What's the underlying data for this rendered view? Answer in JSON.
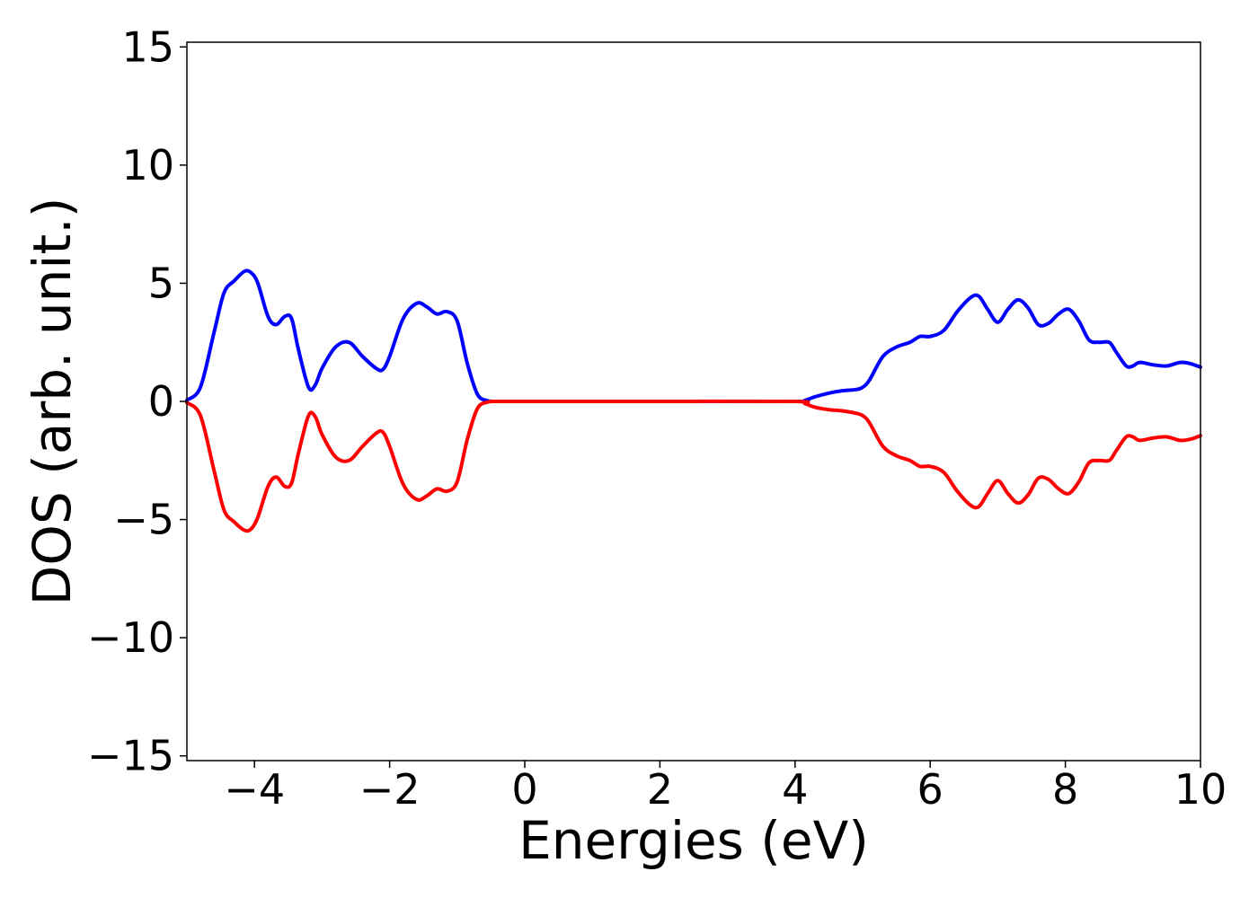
{
  "chart_data": {
    "type": "line",
    "title": "",
    "xlabel": "Energies (eV)",
    "ylabel": "DOS (arb. unit.)",
    "xlim": [
      -5,
      10
    ],
    "ylim": [
      -15.2,
      15.2
    ],
    "xticks": [
      -4,
      -2,
      0,
      2,
      4,
      6,
      8,
      10
    ],
    "xtick_labels": [
      "−4",
      "−2",
      "0",
      "2",
      "4",
      "6",
      "8",
      "10"
    ],
    "yticks": [
      15,
      10,
      5,
      0,
      -5,
      -10,
      -15
    ],
    "ytick_labels": [
      "15",
      "10",
      "5",
      "0",
      "−5",
      "−10",
      "−15"
    ],
    "grid": false,
    "legend": "none",
    "series": [
      {
        "color": "#0000ff",
        "x": [
          -5.0,
          -4.8,
          -4.6,
          -4.45,
          -4.3,
          -4.15,
          -4.05,
          -3.95,
          -3.8,
          -3.68,
          -3.55,
          -3.45,
          -3.35,
          -3.2,
          -3.1,
          -3.0,
          -2.8,
          -2.6,
          -2.4,
          -2.2,
          -2.1,
          -2.0,
          -1.8,
          -1.6,
          -1.45,
          -1.3,
          -1.15,
          -1.0,
          -0.85,
          -0.7,
          -0.55,
          -0.4,
          0.0,
          2.0,
          4.0,
          4.15,
          4.3,
          4.5,
          4.7,
          4.9,
          5.0,
          5.1,
          5.3,
          5.5,
          5.7,
          5.85,
          6.0,
          6.2,
          6.4,
          6.6,
          6.72,
          6.85,
          7.0,
          7.15,
          7.3,
          7.45,
          7.6,
          7.75,
          7.9,
          8.05,
          8.2,
          8.35,
          8.5,
          8.65,
          8.75,
          8.9,
          9.0,
          9.1,
          9.3,
          9.5,
          9.7,
          9.85,
          10.0
        ],
        "y": [
          0.05,
          0.6,
          2.9,
          4.6,
          5.1,
          5.5,
          5.45,
          5.0,
          3.6,
          3.25,
          3.6,
          3.5,
          2.2,
          0.6,
          0.7,
          1.4,
          2.3,
          2.5,
          1.9,
          1.4,
          1.35,
          1.9,
          3.5,
          4.15,
          4.0,
          3.7,
          3.8,
          3.4,
          1.6,
          0.3,
          0.03,
          0.0,
          0.0,
          0.0,
          0.0,
          0.05,
          0.2,
          0.35,
          0.45,
          0.5,
          0.6,
          0.9,
          1.9,
          2.3,
          2.5,
          2.75,
          2.75,
          3.0,
          3.8,
          4.4,
          4.45,
          3.9,
          3.35,
          3.9,
          4.3,
          3.95,
          3.25,
          3.3,
          3.7,
          3.9,
          3.4,
          2.6,
          2.5,
          2.5,
          2.1,
          1.5,
          1.5,
          1.65,
          1.55,
          1.5,
          1.65,
          1.6,
          1.45
        ]
      },
      {
        "color": "#ff0000",
        "x": [
          -5.0,
          -4.8,
          -4.6,
          -4.45,
          -4.3,
          -4.15,
          -4.05,
          -3.95,
          -3.8,
          -3.68,
          -3.55,
          -3.45,
          -3.35,
          -3.2,
          -3.1,
          -3.0,
          -2.8,
          -2.6,
          -2.4,
          -2.2,
          -2.1,
          -2.0,
          -1.8,
          -1.6,
          -1.45,
          -1.3,
          -1.15,
          -1.0,
          -0.85,
          -0.7,
          -0.55,
          -0.4,
          0.0,
          2.0,
          4.0,
          4.15,
          4.3,
          4.5,
          4.7,
          4.9,
          5.0,
          5.1,
          5.3,
          5.5,
          5.7,
          5.85,
          6.0,
          6.2,
          6.4,
          6.6,
          6.72,
          6.85,
          7.0,
          7.15,
          7.3,
          7.45,
          7.6,
          7.75,
          7.9,
          8.05,
          8.2,
          8.35,
          8.5,
          8.65,
          8.75,
          8.9,
          9.0,
          9.1,
          9.3,
          9.5,
          9.7,
          9.85,
          10.0
        ],
        "y": [
          -0.05,
          -0.6,
          -2.9,
          -4.6,
          -5.1,
          -5.45,
          -5.4,
          -4.9,
          -3.6,
          -3.2,
          -3.6,
          -3.45,
          -2.2,
          -0.6,
          -0.65,
          -1.4,
          -2.35,
          -2.5,
          -1.9,
          -1.35,
          -1.3,
          -1.9,
          -3.5,
          -4.15,
          -4.0,
          -3.7,
          -3.8,
          -3.4,
          -1.6,
          -0.3,
          -0.03,
          0.0,
          0.0,
          0.0,
          0.0,
          -0.1,
          -0.25,
          -0.35,
          -0.4,
          -0.5,
          -0.6,
          -0.9,
          -1.9,
          -2.3,
          -2.5,
          -2.75,
          -2.75,
          -3.0,
          -3.8,
          -4.4,
          -4.45,
          -3.9,
          -3.35,
          -3.9,
          -4.3,
          -3.95,
          -3.25,
          -3.3,
          -3.7,
          -3.9,
          -3.4,
          -2.6,
          -2.5,
          -2.5,
          -2.1,
          -1.5,
          -1.5,
          -1.65,
          -1.55,
          -1.5,
          -1.65,
          -1.6,
          -1.45
        ]
      }
    ]
  }
}
